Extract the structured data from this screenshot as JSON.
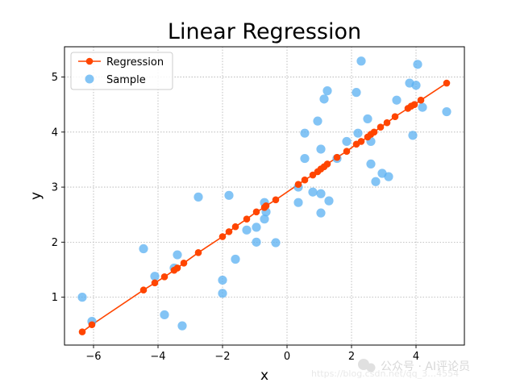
{
  "chart_data": {
    "type": "scatter",
    "title": "Linear Regression",
    "xlabel": "x",
    "ylabel": "y",
    "xlim": [
      -6.9,
      5.5
    ],
    "ylim": [
      0.13,
      5.55
    ],
    "xticks": [
      -6,
      -4,
      -2,
      0,
      2,
      4
    ],
    "xtick_labels": [
      "−6",
      "−4",
      "−2",
      "0",
      "2",
      "4"
    ],
    "yticks": [
      1,
      2,
      3,
      4,
      5
    ],
    "ytick_labels": [
      "1",
      "2",
      "3",
      "4",
      "5"
    ],
    "grid": true,
    "legend_position": "top-left",
    "series": [
      {
        "name": "Regression",
        "kind": "line-markers",
        "color": "#ff4500",
        "points": [
          [
            -6.35,
            0.37
          ],
          [
            -6.05,
            0.5
          ],
          [
            -4.45,
            1.13
          ],
          [
            -4.1,
            1.26
          ],
          [
            -3.8,
            1.37
          ],
          [
            -3.5,
            1.49
          ],
          [
            -3.4,
            1.53
          ],
          [
            -3.2,
            1.62
          ],
          [
            -2.75,
            1.81
          ],
          [
            -2.0,
            2.1
          ],
          [
            -1.8,
            2.19
          ],
          [
            -1.6,
            2.28
          ],
          [
            -1.25,
            2.42
          ],
          [
            -0.95,
            2.55
          ],
          [
            -0.7,
            2.63
          ],
          [
            -0.65,
            2.66
          ],
          [
            -0.35,
            2.77
          ],
          [
            0.35,
            3.05
          ],
          [
            0.55,
            3.13
          ],
          [
            0.8,
            3.22
          ],
          [
            0.95,
            3.28
          ],
          [
            1.05,
            3.33
          ],
          [
            1.15,
            3.37
          ],
          [
            1.25,
            3.42
          ],
          [
            1.55,
            3.54
          ],
          [
            1.85,
            3.65
          ],
          [
            2.15,
            3.78
          ],
          [
            2.3,
            3.83
          ],
          [
            2.5,
            3.91
          ],
          [
            2.6,
            3.96
          ],
          [
            2.7,
            4.0
          ],
          [
            2.9,
            4.09
          ],
          [
            3.1,
            4.17
          ],
          [
            3.35,
            4.28
          ],
          [
            3.75,
            4.43
          ],
          [
            3.85,
            4.47
          ],
          [
            3.95,
            4.5
          ],
          [
            4.15,
            4.58
          ],
          [
            4.95,
            4.89
          ]
        ]
      },
      {
        "name": "Sample",
        "kind": "scatter",
        "color": "#5ab0f2",
        "points": [
          [
            -6.35,
            1.0
          ],
          [
            -6.05,
            0.56
          ],
          [
            -4.45,
            1.88
          ],
          [
            -4.1,
            1.38
          ],
          [
            -3.8,
            0.68
          ],
          [
            -3.5,
            1.53
          ],
          [
            -3.4,
            1.77
          ],
          [
            -3.25,
            0.48
          ],
          [
            -2.75,
            2.82
          ],
          [
            -2.0,
            1.07
          ],
          [
            -2.0,
            1.31
          ],
          [
            -1.8,
            2.85
          ],
          [
            -1.6,
            1.69
          ],
          [
            -1.25,
            2.22
          ],
          [
            -0.95,
            2.27
          ],
          [
            -0.95,
            2.0
          ],
          [
            -0.7,
            2.72
          ],
          [
            -0.65,
            2.55
          ],
          [
            -0.7,
            2.42
          ],
          [
            -0.35,
            1.99
          ],
          [
            0.35,
            2.72
          ],
          [
            0.35,
            3.0
          ],
          [
            0.55,
            3.52
          ],
          [
            0.55,
            3.98
          ],
          [
            0.8,
            2.91
          ],
          [
            0.95,
            4.2
          ],
          [
            1.05,
            3.69
          ],
          [
            1.05,
            2.88
          ],
          [
            1.05,
            2.53
          ],
          [
            1.15,
            4.6
          ],
          [
            1.25,
            4.75
          ],
          [
            1.3,
            2.75
          ],
          [
            1.55,
            3.52
          ],
          [
            1.85,
            3.83
          ],
          [
            2.15,
            4.72
          ],
          [
            2.2,
            3.98
          ],
          [
            2.3,
            5.29
          ],
          [
            2.5,
            4.24
          ],
          [
            2.6,
            3.42
          ],
          [
            2.6,
            3.83
          ],
          [
            2.75,
            3.1
          ],
          [
            2.95,
            3.25
          ],
          [
            3.15,
            3.19
          ],
          [
            3.4,
            4.58
          ],
          [
            3.8,
            4.89
          ],
          [
            3.9,
            3.94
          ],
          [
            4.0,
            4.85
          ],
          [
            4.05,
            5.23
          ],
          [
            4.2,
            4.45
          ],
          [
            4.95,
            4.37
          ]
        ]
      }
    ]
  },
  "watermark": {
    "line1": "公众号 · AI评论员",
    "line2": "https://blog.csdn.net/qq_3…4554"
  }
}
